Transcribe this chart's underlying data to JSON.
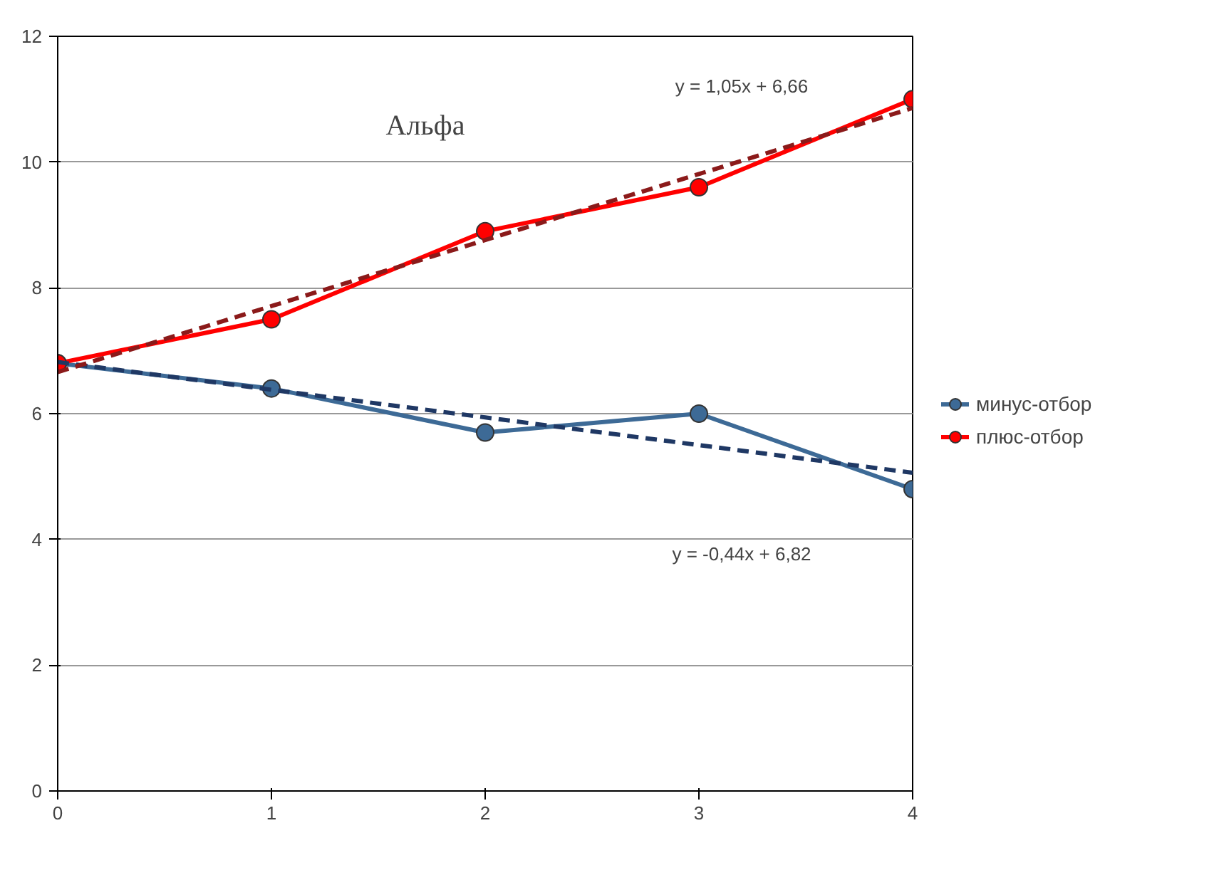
{
  "chart_data": {
    "type": "line",
    "title": "Альфа",
    "x": [
      0,
      1,
      2,
      3,
      4
    ],
    "series": [
      {
        "name": "минус-отбор",
        "color": "#3d6a96",
        "values": [
          6.8,
          6.4,
          5.7,
          6.0,
          4.8
        ],
        "marker": "circle"
      },
      {
        "name": "плюс-отбор",
        "color": "#ff0000",
        "values": [
          6.8,
          7.5,
          8.9,
          9.6,
          11.0
        ],
        "marker": "circle"
      },
      {
        "type": "line",
        "color": "#1f3864",
        "values": [
          6.82,
          6.38,
          5.94,
          5.5,
          5.06
        ],
        "line_style": "dashed",
        "marker": "none"
      },
      {
        "type": "line",
        "color": "#8b1a1a",
        "values": [
          6.66,
          7.71,
          8.76,
          9.81,
          10.86
        ],
        "line_style": "dashed",
        "marker": "none"
      }
    ],
    "annotations": [
      "y = 1,05x + 6,66",
      "y = -0,44x + 6,82"
    ],
    "xlim": [
      0,
      4
    ],
    "ylim": [
      0,
      12
    ],
    "xticks": [
      0,
      1,
      2,
      3,
      4
    ],
    "yticks": [
      0,
      2,
      4,
      6,
      8,
      10,
      12
    ],
    "grid": "y",
    "legend": "right"
  }
}
